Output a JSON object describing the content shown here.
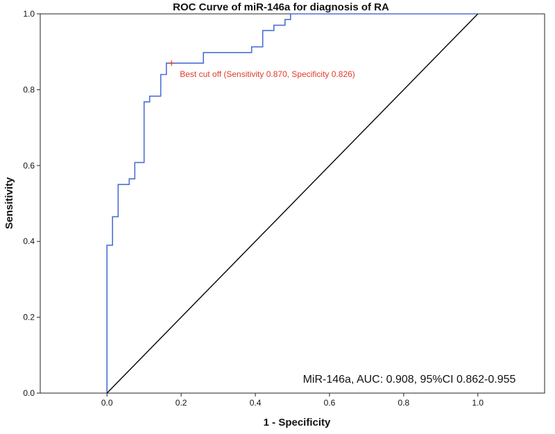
{
  "chart_data": {
    "type": "line",
    "title": "ROC Curve of miR-146a for diagnosis of RA",
    "xlabel": "1 - Specificity",
    "ylabel": "Sensitivity",
    "xlim": [
      -0.18,
      1.18
    ],
    "ylim": [
      0,
      1
    ],
    "x_ticks": [
      0.0,
      0.2,
      0.4,
      0.6,
      0.8,
      1.0
    ],
    "y_ticks": [
      0.0,
      0.2,
      0.4,
      0.6,
      0.8,
      1.0
    ],
    "x_tick_labels": [
      "0.0",
      "0.2",
      "0.4",
      "0.6",
      "0.8",
      "1.0"
    ],
    "y_tick_labels": [
      "0.0",
      "0.2",
      "0.4",
      "0.6",
      "0.8",
      "1.0"
    ],
    "grid": false,
    "series": [
      {
        "name": "",
        "color": "#4a6fd6",
        "step": true,
        "points": [
          [
            0.0,
            0.0
          ],
          [
            0.0,
            0.39
          ],
          [
            0.015,
            0.39
          ],
          [
            0.015,
            0.465
          ],
          [
            0.03,
            0.465
          ],
          [
            0.03,
            0.55
          ],
          [
            0.06,
            0.55
          ],
          [
            0.06,
            0.565
          ],
          [
            0.075,
            0.565
          ],
          [
            0.075,
            0.608
          ],
          [
            0.1,
            0.608
          ],
          [
            0.1,
            0.768
          ],
          [
            0.115,
            0.768
          ],
          [
            0.115,
            0.783
          ],
          [
            0.145,
            0.783
          ],
          [
            0.145,
            0.84
          ],
          [
            0.16,
            0.84
          ],
          [
            0.16,
            0.87
          ],
          [
            0.26,
            0.87
          ],
          [
            0.26,
            0.898
          ],
          [
            0.39,
            0.898
          ],
          [
            0.39,
            0.913
          ],
          [
            0.42,
            0.913
          ],
          [
            0.42,
            0.956
          ],
          [
            0.45,
            0.956
          ],
          [
            0.45,
            0.97
          ],
          [
            0.48,
            0.97
          ],
          [
            0.48,
            0.985
          ],
          [
            0.495,
            0.985
          ],
          [
            0.495,
            1.0
          ],
          [
            1.0,
            1.0
          ]
        ]
      },
      {
        "name": "",
        "color": "#000000",
        "step": false,
        "points": [
          [
            0.0,
            0.0
          ],
          [
            1.0,
            1.0
          ]
        ]
      }
    ],
    "annotations": [
      {
        "id": "best-cut-off",
        "text": "Best cut off (Sensitivity 0.870, Specificity 0.826)",
        "x": 0.174,
        "y": 0.87,
        "color": "#e03b2a"
      }
    ],
    "summary_text": "MiR-146a, AUC: 0.908, 95%CI 0.862-0.955"
  }
}
